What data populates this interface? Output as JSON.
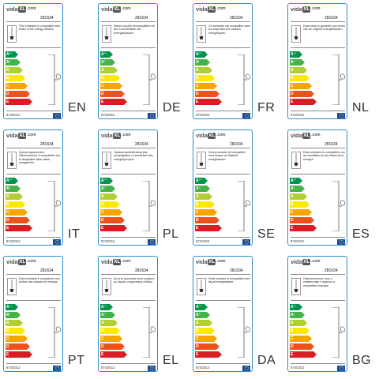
{
  "logo_text": "vida",
  "logo_xl": "XL",
  "logo_com": ".com",
  "bar_colors": [
    "#00954a",
    "#47b14a",
    "#b1cf34",
    "#fde900",
    "#f6a500",
    "#e9541d",
    "#d81e23"
  ],
  "bar_labels": [
    "A",
    "A",
    "A",
    "B",
    "C",
    "D",
    "E"
  ],
  "bar_sups": [
    "++",
    "+",
    "",
    "",
    "",
    "",
    ""
  ],
  "labels": [
    {
      "lang": "EN",
      "model": "281634",
      "description": "This luminaire is compatible with bulbs of the energy classes:",
      "regulation": "874/2012"
    },
    {
      "lang": "DE",
      "model": "281634",
      "description": "Diese Leuchte ist kompatibel mit den Leuchtmitteln der Energieklassen:",
      "regulation": "874/2012"
    },
    {
      "lang": "FR",
      "model": "281634",
      "description": "Ce luminaire est compatible avec les ampoules des classes énergétiques:",
      "regulation": "874/2012"
    },
    {
      "lang": "NL",
      "model": "281634",
      "description": "Deze lamp is geschikt voor peren van de volgend energieklassen:",
      "regulation": "874/2012"
    },
    {
      "lang": "IT",
      "model": "281634",
      "description": "Questo apparecchio d'illuminazione è compatibile con le lampadine delle classi energetiche:",
      "regulation": "874/2012"
    },
    {
      "lang": "PL",
      "model": "281634",
      "description": "Oprawa oświetleniowa jest kompatybilna z żarówkami klas energetycznych:",
      "regulation": "874/2012"
    },
    {
      "lang": "SE",
      "model": "281634",
      "description": "Denna armatur är kompatibel med lampor av följande energiklasser:",
      "regulation": "874/2012"
    },
    {
      "lang": "ES",
      "model": "281634",
      "description": "Esta luminaria es compatible con las bombillas de las clases de la energía:",
      "regulation": "874/2012"
    },
    {
      "lang": "PT",
      "model": "281634",
      "description": "Esta luminária é compatível com bulbos das classes de energia:",
      "regulation": "874/2012"
    },
    {
      "lang": "EL",
      "model": "281634",
      "description": "Αυτό το φωτιστικό είναι συμβατό με λάμπες ενεργειακής κλάσης:",
      "regulation": "874/2012"
    },
    {
      "lang": "DA",
      "model": "281634",
      "description": "Dette armatur er kompatibel med løg af energiklasser:",
      "regulation": "874/2012"
    },
    {
      "lang": "BG",
      "model": "281634",
      "description": "Осветителното тяло е съвместимо с крушки от енергийни класове:",
      "regulation": "874/2012"
    }
  ]
}
